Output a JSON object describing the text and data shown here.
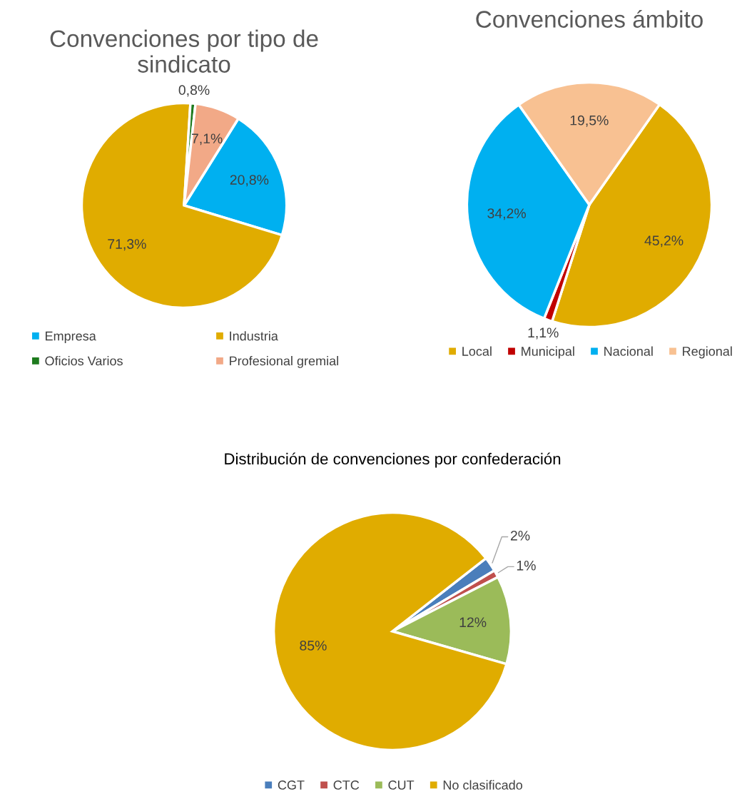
{
  "chart_data": [
    {
      "type": "pie",
      "title": "Convenciones por tipo de sindicato",
      "categories": [
        "Empresa",
        "Industria",
        "Oficios Varios",
        "Profesional gremial"
      ],
      "values": [
        20.8,
        71.3,
        0.8,
        7.1
      ],
      "colors": [
        "#00b0f0",
        "#e0ac00",
        "#1e7b1e",
        "#f2a987"
      ],
      "value_labels": [
        "20,8%",
        "71,3%",
        "0,8%",
        "7,1%"
      ],
      "legend": "bottom"
    },
    {
      "type": "pie",
      "title": "Convenciones ámbito",
      "categories": [
        "Local",
        "Municipal",
        "Nacional",
        "Regional"
      ],
      "values": [
        45.2,
        1.1,
        34.2,
        19.5
      ],
      "colors": [
        "#e0ac00",
        "#c00000",
        "#00b0f0",
        "#f8c192"
      ],
      "value_labels": [
        "45,2%",
        "1,1%",
        "34,2%",
        "19,5%"
      ],
      "legend": "bottom"
    },
    {
      "type": "pie",
      "title": "Distribución de convenciones por confederación",
      "categories": [
        "CGT",
        "CTC",
        "CUT",
        "No clasificado"
      ],
      "values": [
        2,
        1,
        12,
        85
      ],
      "colors": [
        "#4a7ebb",
        "#c0504d",
        "#9bbb59",
        "#e0ac00"
      ],
      "value_labels": [
        "2%",
        "1%",
        "12%",
        "85%"
      ],
      "legend": "bottom"
    }
  ]
}
